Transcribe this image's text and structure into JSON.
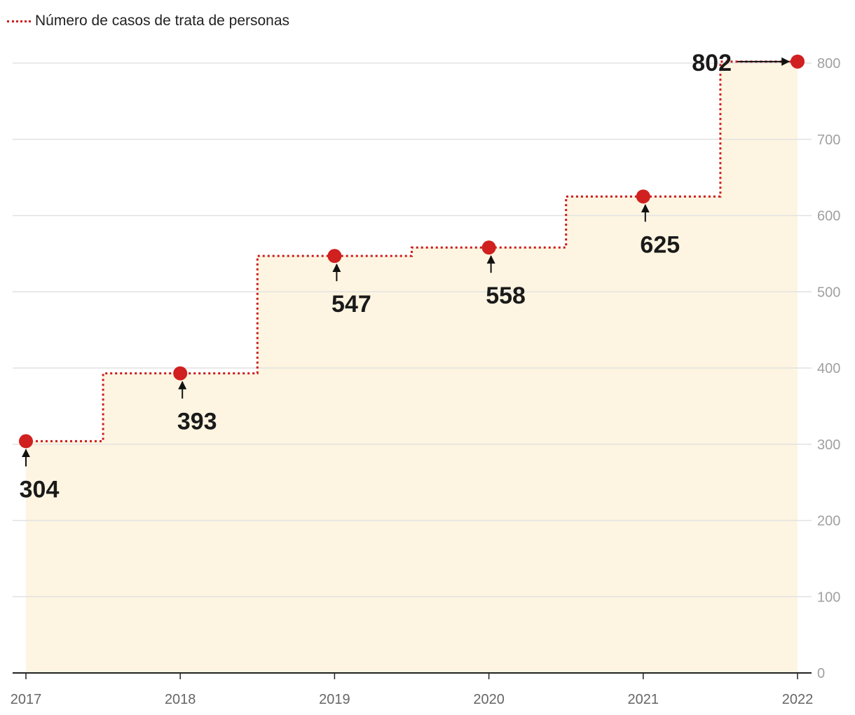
{
  "chart_data": {
    "type": "line",
    "title": "",
    "xlabel": "",
    "ylabel": "",
    "x": [
      "2017",
      "2018",
      "2019",
      "2020",
      "2021",
      "2022"
    ],
    "series": [
      {
        "name": "Número de casos de trata de personas",
        "values": [
          304,
          393,
          547,
          558,
          625,
          802
        ]
      }
    ],
    "data_labels": [
      "304",
      "393",
      "547",
      "558",
      "625",
      "802"
    ],
    "yticks": [
      0,
      100,
      200,
      300,
      400,
      500,
      600,
      700,
      800
    ],
    "ylim": [
      0,
      800
    ],
    "step_line": true,
    "grid": true,
    "legend_placement": "top-left",
    "y_axis_side": "right",
    "colors": {
      "line": "#cc1a1a",
      "marker": "#d0201f",
      "area": "#fdf5e1",
      "grid": "#e2e2e2"
    }
  }
}
